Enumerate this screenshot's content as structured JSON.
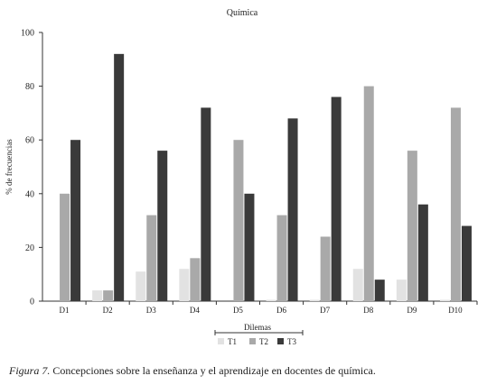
{
  "chart_data": {
    "type": "bar",
    "title": "Química",
    "xlabel": "Dilemas",
    "ylabel": "% de frecuencias",
    "ylim": [
      0,
      100
    ],
    "yticks": [
      0,
      20,
      40,
      60,
      80,
      100
    ],
    "categories": [
      "D1",
      "D2",
      "D3",
      "D4",
      "D5",
      "D6",
      "D7",
      "D8",
      "D9",
      "D10"
    ],
    "series": [
      {
        "name": "T1",
        "color": "#e2e2e2",
        "values": [
          0,
          4,
          11,
          12,
          0,
          0.5,
          0.5,
          12,
          8,
          0.5
        ]
      },
      {
        "name": "T2",
        "color": "#a9a9a9",
        "values": [
          40,
          4,
          32,
          16,
          60,
          32,
          24,
          80,
          56,
          72
        ]
      },
      {
        "name": "T3",
        "color": "#3a3a3a",
        "values": [
          60,
          92,
          56,
          72,
          40,
          68,
          76,
          8,
          36,
          28
        ]
      }
    ],
    "legend_position": "bottom-center",
    "grid": false
  },
  "caption": {
    "figure_label": "Figura 7.",
    "text": " Concepciones sobre la enseñanza y el aprendizaje en docentes de química."
  }
}
